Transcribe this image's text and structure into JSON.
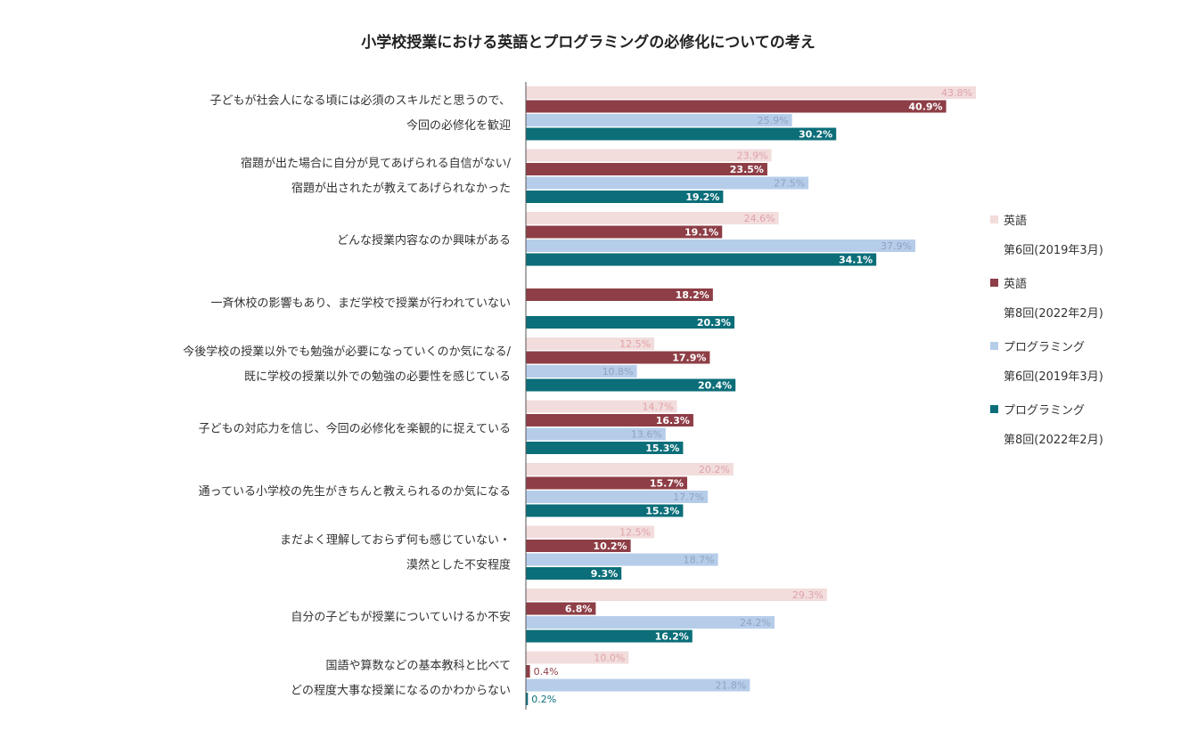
{
  "chart_data": {
    "type": "bar",
    "orientation": "horizontal",
    "title": "小学校授業における英語とプログラミングの必修化についての考え",
    "unit": "%",
    "xlim": [
      0,
      50
    ],
    "categories": [
      [
        "子どもが社会人になる頃には必須のスキルだと思うので、",
        "今回の必修化を歓迎"
      ],
      [
        "宿題が出た場合に自分が見てあげられる自信がない/",
        "宿題が出されたが教えてあげられなかった"
      ],
      [
        "どんな授業内容なのか興味がある"
      ],
      [
        "一斉休校の影響もあり、まだ学校で授業が行われていない"
      ],
      [
        "今後学校の授業以外でも勉強が必要になっていくのか気になる/",
        "既に学校の授業以外での勉強の必要性を感じている"
      ],
      [
        "子どもの対応力を信じ、今回の必修化を楽観的に捉えている"
      ],
      [
        "通っている小学校の先生がきちんと教えられるのか気になる"
      ],
      [
        "まだよく理解しておらず何も感じていない・",
        "漠然とした不安程度"
      ],
      [
        "自分の子どもが授業についていけるか不安"
      ],
      [
        "国語や算数などの基本教科と比べて",
        "どの程度大事な授業になるのかわからない"
      ]
    ],
    "series": [
      {
        "name": "英語",
        "period": "第6回(2019年3月)",
        "color": "#f2dcdc",
        "label_color": "#e0a3a8",
        "values": [
          43.8,
          23.9,
          24.6,
          null,
          12.5,
          14.7,
          20.2,
          12.5,
          29.3,
          10.0
        ]
      },
      {
        "name": "英語",
        "period": "第8回(2022年2月)",
        "color": "#8e3e46",
        "label_color": "#ffffff",
        "values": [
          40.9,
          23.5,
          19.1,
          18.2,
          17.9,
          16.3,
          15.7,
          10.2,
          6.8,
          0.4
        ]
      },
      {
        "name": "プログラミング",
        "period": "第6回(2019年3月)",
        "color": "#b6cdea",
        "label_color": "#8fa3c2",
        "values": [
          25.9,
          27.5,
          37.9,
          null,
          10.8,
          13.6,
          17.7,
          18.7,
          24.2,
          21.8
        ]
      },
      {
        "name": "プログラミング",
        "period": "第8回(2022年2月)",
        "color": "#0b6e79",
        "label_color": "#ffffff",
        "values": [
          30.2,
          19.2,
          34.1,
          20.3,
          20.4,
          15.3,
          15.3,
          9.3,
          16.2,
          0.2
        ]
      }
    ]
  }
}
